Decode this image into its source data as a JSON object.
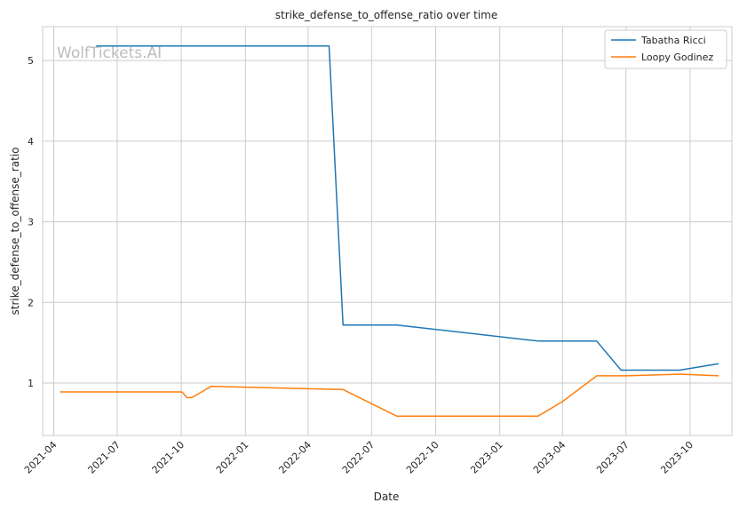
{
  "chart_data": {
    "type": "line",
    "title": "strike_defense_to_offense_ratio over time",
    "xlabel": "Date",
    "ylabel": "strike_defense_to_offense_ratio",
    "watermark": "WolfTickets.AI",
    "xlim": [
      "2021-03-16",
      "2023-11-30"
    ],
    "ylim": [
      0.35,
      5.42
    ],
    "x_ticks": [
      "2021-04",
      "2021-07",
      "2021-10",
      "2022-01",
      "2022-04",
      "2022-07",
      "2022-10",
      "2023-01",
      "2023-04",
      "2023-07",
      "2023-10"
    ],
    "y_ticks": [
      1,
      2,
      3,
      4,
      5
    ],
    "grid": true,
    "legend_position": "top-right",
    "series": [
      {
        "name": "Tabatha Ricci",
        "color": "#1f77b4",
        "points": [
          {
            "x": "2021-06-01",
            "y": 5.18
          },
          {
            "x": "2022-05-01",
            "y": 5.18
          },
          {
            "x": "2022-05-21",
            "y": 1.72
          },
          {
            "x": "2022-08-06",
            "y": 1.72
          },
          {
            "x": "2023-02-25",
            "y": 1.52
          },
          {
            "x": "2023-05-20",
            "y": 1.52
          },
          {
            "x": "2023-06-24",
            "y": 1.16
          },
          {
            "x": "2023-09-16",
            "y": 1.16
          },
          {
            "x": "2023-11-11",
            "y": 1.24
          }
        ]
      },
      {
        "name": "Loopy Godinez",
        "color": "#ff7f0e",
        "points": [
          {
            "x": "2021-04-10",
            "y": 0.89
          },
          {
            "x": "2021-10-02",
            "y": 0.89
          },
          {
            "x": "2021-10-09",
            "y": 0.82
          },
          {
            "x": "2021-10-16",
            "y": 0.82
          },
          {
            "x": "2021-11-13",
            "y": 0.96
          },
          {
            "x": "2022-05-21",
            "y": 0.92
          },
          {
            "x": "2022-08-06",
            "y": 0.59
          },
          {
            "x": "2023-02-25",
            "y": 0.59
          },
          {
            "x": "2023-04-01",
            "y": 0.77
          },
          {
            "x": "2023-05-20",
            "y": 1.09
          },
          {
            "x": "2023-07-01",
            "y": 1.09
          },
          {
            "x": "2023-09-16",
            "y": 1.11
          },
          {
            "x": "2023-11-11",
            "y": 1.09
          }
        ]
      }
    ]
  }
}
